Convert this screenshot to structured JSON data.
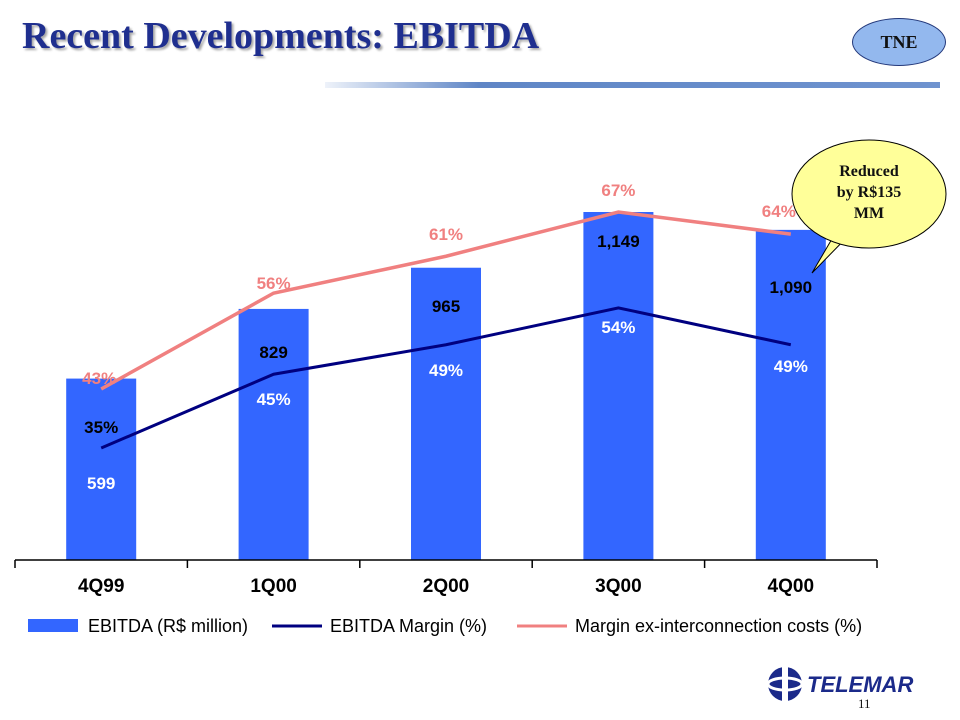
{
  "slide": {
    "title": "Recent Developments: EBITDA",
    "badge": "TNE",
    "page_number": "11",
    "logo_text": "TELEMAR"
  },
  "colors": {
    "bar": "#3366ff",
    "ebitda_margin_line": "#000080",
    "margin_ex_line": "#f08080",
    "title": "#1f2f8f",
    "callout_fill": "#ffff99",
    "logo": "#1b2a8a"
  },
  "callout": {
    "text_lines": [
      "Reduced",
      "by R$135",
      "MM"
    ]
  },
  "chart_data": {
    "type": "bar",
    "categories": [
      "4Q99",
      "1Q00",
      "2Q00",
      "3Q00",
      "4Q00"
    ],
    "series": [
      {
        "name": "EBITDA (R$ million)",
        "type": "bar",
        "values": [
          599,
          829,
          965,
          1149,
          1090
        ],
        "labels": [
          "599",
          "829",
          "965",
          "1,149",
          "1,090"
        ]
      },
      {
        "name": "EBITDA Margin (%)",
        "type": "line",
        "values": [
          35,
          45,
          49,
          54,
          49
        ],
        "labels": [
          "35%",
          "45%",
          "49%",
          "54%",
          "49%"
        ]
      },
      {
        "name": "Margin ex-interconnection costs (%)",
        "type": "line",
        "values": [
          43,
          56,
          61,
          67,
          64
        ],
        "labels": [
          "43%",
          "56%",
          "61%",
          "67%",
          "64%"
        ]
      }
    ],
    "bar_ylim": [
      0,
      1200
    ],
    "legend": "bottom"
  }
}
